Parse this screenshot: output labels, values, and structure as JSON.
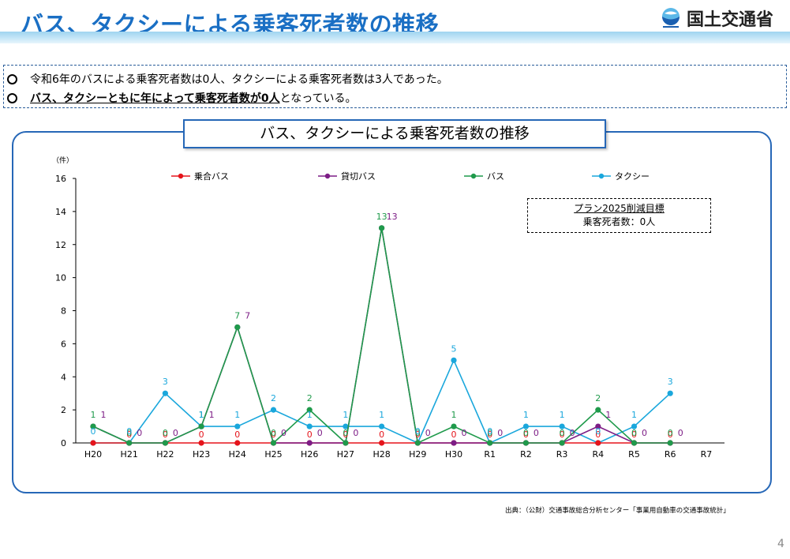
{
  "header": {
    "title": "バス、タクシーによる乗客死者数の推移",
    "logo_text": "国土交通省",
    "logo_icon": "mlit-logo-icon"
  },
  "summary": {
    "line1": "令和6年のバスによる乗客死者数は0人、タクシーによる乗客死者数は3人であった。",
    "line2_part1": "バス、タクシーともに年によって乗客死者数が0人",
    "line2_part2": "となっている。"
  },
  "panel_title": "バス、タクシーによる乗客死者数の推移",
  "target_box": {
    "line1": "プラン2025削減目標",
    "line2": "乗客死者数：0人"
  },
  "source": "出典：（公財）交通事故総合分析センター「事業用自動車の交通事故統計」",
  "page_number": "4",
  "chart_data": {
    "type": "line",
    "unit_label": "（件）",
    "categories": [
      "H20",
      "H21",
      "H22",
      "H23",
      "H24",
      "H25",
      "H26",
      "H27",
      "H28",
      "H29",
      "H30",
      "R1",
      "R2",
      "R3",
      "R4",
      "R5",
      "R6",
      "R7"
    ],
    "ylim": [
      0,
      16
    ],
    "yticks": [
      0,
      2,
      4,
      6,
      8,
      10,
      12,
      14,
      16
    ],
    "grid": false,
    "legend_position": "top",
    "series": [
      {
        "name": "乗合バス",
        "color": "#e5141b",
        "values": [
          0,
          0,
          0,
          0,
          0,
          0,
          0,
          0,
          0,
          0,
          0,
          0,
          0,
          0,
          0,
          0,
          0,
          null
        ],
        "labels": [
          null,
          "0",
          "0",
          "0",
          "0",
          "0",
          "0",
          "0",
          "0",
          "0",
          "0",
          "0",
          "0",
          "0",
          "0",
          "0",
          "0",
          null
        ]
      },
      {
        "name": "貸切バス",
        "color": "#7d1d86",
        "values": [
          1,
          0,
          0,
          1,
          7,
          0,
          0,
          0,
          13,
          0,
          0,
          0,
          0,
          0,
          1,
          0,
          0,
          null
        ],
        "labels": [
          "1",
          "0",
          "0",
          "1",
          "7",
          "0",
          "0",
          "0",
          "13",
          "0",
          "0",
          "0",
          "0",
          "0",
          "1",
          "0",
          "0",
          null
        ]
      },
      {
        "name": "バス",
        "color": "#1f9a4b",
        "values": [
          1,
          0,
          0,
          1,
          7,
          0,
          2,
          0,
          13,
          0,
          1,
          0,
          0,
          0,
          2,
          0,
          0,
          null
        ],
        "labels": [
          "1",
          "0",
          "0",
          "1",
          "7",
          "0",
          "2",
          "0",
          "13",
          "0",
          "1",
          "0",
          "0",
          "0",
          "2",
          "0",
          "0",
          null
        ]
      },
      {
        "name": "タクシー",
        "color": "#1aa7dc",
        "values": [
          0,
          0,
          3,
          1,
          1,
          2,
          1,
          1,
          1,
          0,
          5,
          0,
          1,
          1,
          0,
          1,
          3,
          null
        ],
        "labels": [
          "0",
          "0",
          "3",
          "1",
          "1",
          "2",
          "1",
          "1",
          "1",
          "0",
          "5",
          "0",
          "1",
          "1",
          "0",
          "1",
          "3",
          null
        ]
      }
    ]
  }
}
